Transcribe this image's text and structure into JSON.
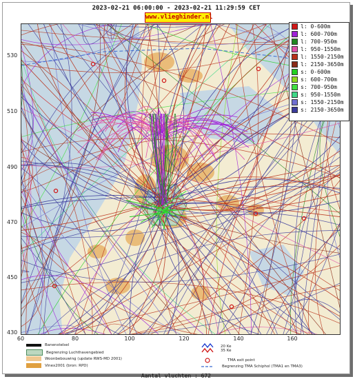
{
  "header": {
    "title": "2023-02-21 06:00:00 - 2023-02-21 11:29:59 CET",
    "site": "www.vlieghinder.nl"
  },
  "map": {
    "y_ticks": [
      "530",
      "510",
      "490",
      "470",
      "450",
      "430"
    ],
    "x_ticks": [
      "60",
      "80",
      "100",
      "120",
      "140",
      "160"
    ],
    "colors": {
      "sea": "#c6d8e4",
      "land": "#f3ecd2",
      "urban": "#e8b46a",
      "airport": "#bcd8c0"
    }
  },
  "legend": {
    "items": [
      {
        "label": "l: 0-600m",
        "color": "#d01818"
      },
      {
        "label": "l: 600-700m",
        "color": "#a020d8"
      },
      {
        "label": "l: 700-950m",
        "color": "#228822"
      },
      {
        "label": "l: 950-1550m",
        "color": "#e050a8"
      },
      {
        "label": "l: 1550-2150m",
        "color": "#b83018"
      },
      {
        "label": "l: 2150-3650m",
        "color": "#8a2a18"
      },
      {
        "label": "s: 0-600m",
        "color": "#22d022"
      },
      {
        "label": "s: 600-700m",
        "color": "#90d820"
      },
      {
        "label": "s: 700-950m",
        "color": "#40e040"
      },
      {
        "label": "s: 950-1550m",
        "color": "#40d888"
      },
      {
        "label": "s: 1550-2150m",
        "color": "#7070d0"
      },
      {
        "label": "s: 2150-3650m",
        "color": "#3a3a9a"
      }
    ]
  },
  "bottom_legend": {
    "banenstelsel": "Banenstelsel",
    "luchthaven": "Begrenzing Luchthavengebied",
    "woonbebouwing": "Woonbebouwing (update RWS-MD 2001)",
    "vinex": "Vinex2001 (bron: RPD)",
    "ke_20": "20 Ke",
    "ke_35": "35 Ke",
    "tma_exit": "TMA exit point",
    "tma_boundary": "Begrenzing TMA Schiphol  (TMA1 en TMA3)"
  },
  "footer": {
    "count_text": "Aantal vluchten : 672"
  }
}
